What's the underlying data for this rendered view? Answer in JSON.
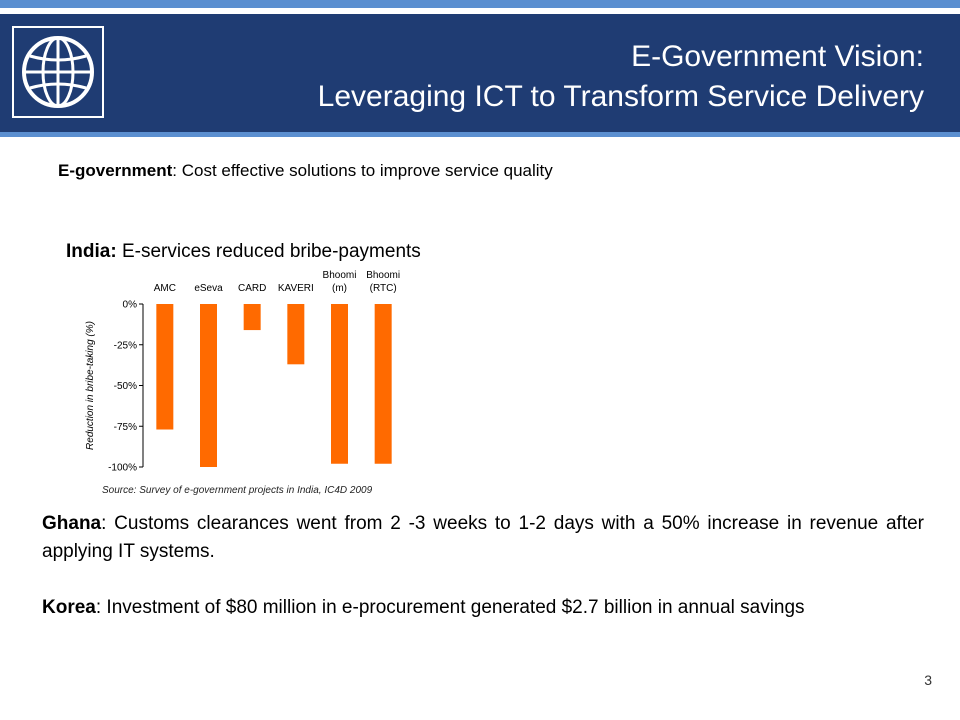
{
  "header": {
    "title_line1": "E-Government Vision:",
    "title_line2": "Leveraging ICT to Transform Service Delivery",
    "logo_icon": "globe-icon",
    "colors": {
      "background": "#1f3c73",
      "accent": "#5b8fd0",
      "text": "#ffffff"
    }
  },
  "subtitle": {
    "bold": "E-government",
    "text": ": Cost effective solutions to improve service quality"
  },
  "india": {
    "bold": "India:",
    "text": " E-services reduced bribe-payments"
  },
  "chart_data": {
    "type": "bar",
    "categories": [
      [
        "AMC"
      ],
      [
        "eSeva"
      ],
      [
        "CARD"
      ],
      [
        "KAVERI"
      ],
      [
        "Bhoomi",
        "(m)"
      ],
      [
        "Bhoomi",
        "(RTC)"
      ]
    ],
    "values": [
      -77,
      -100,
      -16,
      -37,
      -98,
      -98
    ],
    "ylabel": "Reduction in bribe-taking (%)",
    "yticks": [
      0,
      -25,
      -50,
      -75,
      -100
    ],
    "ytick_labels": [
      "0%",
      "-25%",
      "-50%",
      "-75%",
      "-100%"
    ],
    "ylim": [
      -100,
      0
    ],
    "grid": false,
    "bar_color": "#ff6a00"
  },
  "source": "Source: Survey of e-government projects in India, IC4D 2009",
  "ghana": {
    "bold": "Ghana",
    "text": ": Customs clearances went from 2 -3 weeks to 1-2 days with a 50% increase in revenue after applying IT systems."
  },
  "korea": {
    "bold": "Korea",
    "text": ": Investment of $80 million in e-procurement generated $2.7 billion in annual savings"
  },
  "page_number": "3"
}
